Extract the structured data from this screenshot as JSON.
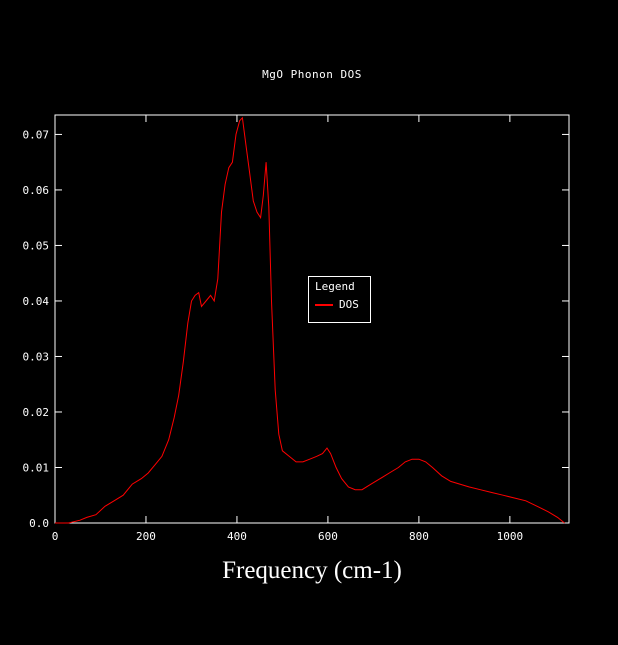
{
  "page": {
    "background_color": "#000000",
    "text_color": "#ffffff"
  },
  "chart_data": {
    "type": "line",
    "title": "MgO Phonon DOS",
    "xlabel": "Frequency (cm-1)",
    "ylabel": "",
    "xlim": [
      0,
      1130
    ],
    "ylim": [
      0,
      0.0735
    ],
    "grid": false,
    "frame_color": "#ffffff",
    "text_color": "#ffffff",
    "x_ticks": [
      0,
      200,
      400,
      600,
      800,
      1000
    ],
    "x_tick_labels": [
      "0",
      "200",
      "400",
      "600",
      "800",
      "1000"
    ],
    "y_ticks": [
      0.0,
      0.01,
      0.02,
      0.03,
      0.04,
      0.05,
      0.06,
      0.07
    ],
    "y_tick_labels": [
      "0.0",
      "0.01",
      "0.02",
      "0.03",
      "0.04",
      "0.05",
      "0.06",
      "0.07"
    ],
    "legend": {
      "title": "Legend",
      "position": "center",
      "entries": [
        {
          "label": "DOS",
          "color": "#ff0000"
        }
      ]
    },
    "series": [
      {
        "name": "DOS",
        "color": "#ff0000",
        "points": [
          [
            0,
            0.0
          ],
          [
            30,
            0.0
          ],
          [
            55,
            0.0005
          ],
          [
            70,
            0.001
          ],
          [
            90,
            0.0015
          ],
          [
            110,
            0.003
          ],
          [
            130,
            0.004
          ],
          [
            150,
            0.005
          ],
          [
            170,
            0.007
          ],
          [
            190,
            0.008
          ],
          [
            205,
            0.009
          ],
          [
            220,
            0.0105
          ],
          [
            235,
            0.012
          ],
          [
            250,
            0.015
          ],
          [
            262,
            0.019
          ],
          [
            272,
            0.023
          ],
          [
            282,
            0.029
          ],
          [
            292,
            0.036
          ],
          [
            300,
            0.04
          ],
          [
            308,
            0.041
          ],
          [
            316,
            0.0415
          ],
          [
            322,
            0.039
          ],
          [
            332,
            0.04
          ],
          [
            342,
            0.041
          ],
          [
            350,
            0.04
          ],
          [
            358,
            0.044
          ],
          [
            366,
            0.056
          ],
          [
            374,
            0.061
          ],
          [
            382,
            0.064
          ],
          [
            390,
            0.065
          ],
          [
            398,
            0.07
          ],
          [
            406,
            0.0725
          ],
          [
            412,
            0.073
          ],
          [
            420,
            0.068
          ],
          [
            428,
            0.063
          ],
          [
            436,
            0.058
          ],
          [
            444,
            0.056
          ],
          [
            452,
            0.055
          ],
          [
            458,
            0.059
          ],
          [
            464,
            0.065
          ],
          [
            470,
            0.057
          ],
          [
            476,
            0.04
          ],
          [
            484,
            0.024
          ],
          [
            492,
            0.016
          ],
          [
            500,
            0.013
          ],
          [
            515,
            0.012
          ],
          [
            530,
            0.011
          ],
          [
            545,
            0.011
          ],
          [
            560,
            0.0115
          ],
          [
            575,
            0.012
          ],
          [
            588,
            0.0125
          ],
          [
            598,
            0.0135
          ],
          [
            606,
            0.0125
          ],
          [
            618,
            0.01
          ],
          [
            630,
            0.008
          ],
          [
            645,
            0.0065
          ],
          [
            660,
            0.006
          ],
          [
            675,
            0.006
          ],
          [
            695,
            0.007
          ],
          [
            715,
            0.008
          ],
          [
            735,
            0.009
          ],
          [
            755,
            0.01
          ],
          [
            770,
            0.011
          ],
          [
            785,
            0.0115
          ],
          [
            800,
            0.0115
          ],
          [
            815,
            0.011
          ],
          [
            830,
            0.01
          ],
          [
            850,
            0.0085
          ],
          [
            870,
            0.0075
          ],
          [
            890,
            0.007
          ],
          [
            910,
            0.0065
          ],
          [
            935,
            0.006
          ],
          [
            960,
            0.0055
          ],
          [
            985,
            0.005
          ],
          [
            1010,
            0.0045
          ],
          [
            1035,
            0.004
          ],
          [
            1060,
            0.003
          ],
          [
            1085,
            0.002
          ],
          [
            1105,
            0.001
          ],
          [
            1120,
            0.0
          ]
        ]
      }
    ]
  }
}
